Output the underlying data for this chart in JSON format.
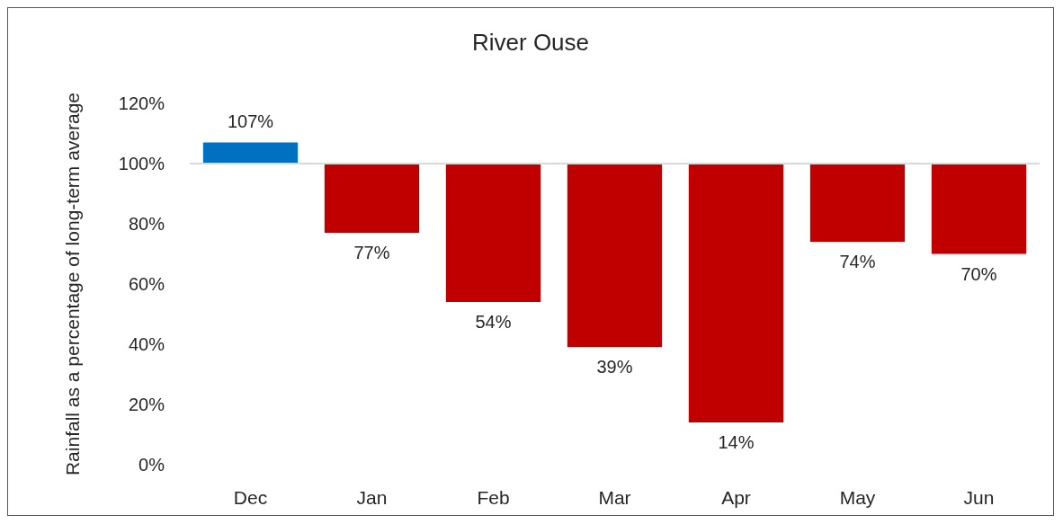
{
  "chart_data": {
    "type": "bar",
    "title": "River Ouse",
    "ylabel": "Rainfall as a percentage of long-term average",
    "categories": [
      "Dec",
      "Jan",
      "Feb",
      "Mar",
      "Apr",
      "May",
      "Jun"
    ],
    "base": [
      100,
      100,
      100,
      100,
      100,
      100,
      100
    ],
    "values": [
      7,
      -23,
      -46,
      -61,
      -86,
      -26,
      -30
    ],
    "value_labels": [
      "107%",
      "77%",
      "54%",
      "39%",
      "14%",
      "74%",
      "70%"
    ],
    "colors": [
      "#0070c0",
      "#c00000",
      "#c00000",
      "#c00000",
      "#c00000",
      "#c00000",
      "#c00000"
    ],
    "ylim": [
      0,
      120
    ],
    "yticks": [
      {
        "value": 0,
        "label": "0%"
      },
      {
        "value": 20,
        "label": "20%"
      },
      {
        "value": 40,
        "label": "40%"
      },
      {
        "value": 60,
        "label": "60%"
      },
      {
        "value": 80,
        "label": "80%"
      },
      {
        "value": 100,
        "label": "100%"
      },
      {
        "value": 120,
        "label": "120%"
      }
    ],
    "ref_lines": [
      {
        "axis": "y",
        "value": 100,
        "color": "#d9d9d9"
      }
    ],
    "grid": false
  }
}
